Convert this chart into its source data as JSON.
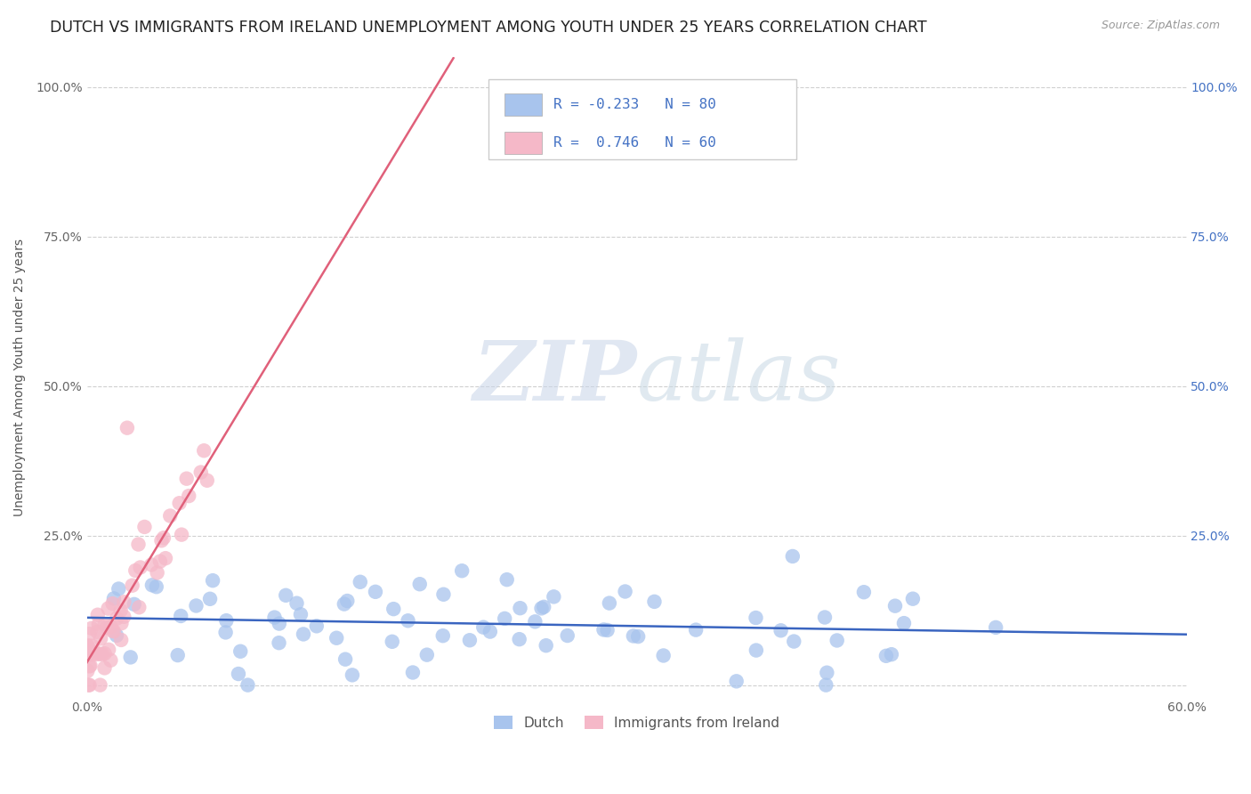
{
  "title": "DUTCH VS IMMIGRANTS FROM IRELAND UNEMPLOYMENT AMONG YOUTH UNDER 25 YEARS CORRELATION CHART",
  "source": "Source: ZipAtlas.com",
  "ylabel": "Unemployment Among Youth under 25 years",
  "xlim": [
    0.0,
    0.6
  ],
  "ylim": [
    -0.02,
    1.05
  ],
  "dutch_color": "#a8c4ed",
  "ireland_color": "#f5b8c8",
  "dutch_line_color": "#3a65c0",
  "ireland_line_color": "#e0607a",
  "legend_text_color": "#4472c4",
  "R_dutch": -0.233,
  "N_dutch": 80,
  "R_ireland": 0.746,
  "N_ireland": 60,
  "watermark_zip": "ZIP",
  "watermark_atlas": "atlas",
  "background_color": "#ffffff",
  "grid_color": "#d0d0d0",
  "title_fontsize": 12.5,
  "axis_label_fontsize": 10,
  "tick_label_fontsize": 10
}
